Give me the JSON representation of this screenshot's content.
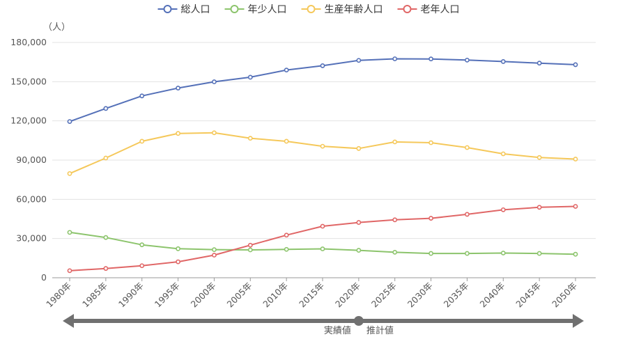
{
  "chart_data": {
    "type": "line",
    "title": "",
    "xlabel": "",
    "ylabel": "",
    "unit_label": "（人）",
    "categories": [
      "1980年",
      "1985年",
      "1990年",
      "1995年",
      "2000年",
      "2005年",
      "2010年",
      "2015年",
      "2020年",
      "2025年",
      "2030年",
      "2035年",
      "2040年",
      "2045年",
      "2050年"
    ],
    "ylim": [
      0,
      180000
    ],
    "yticks": [
      0,
      30000,
      60000,
      90000,
      120000,
      150000,
      180000
    ],
    "ytick_labels": [
      "0",
      "30,000",
      "60,000",
      "90,000",
      "120,000",
      "150,000",
      "180,000"
    ],
    "grid": true,
    "legend_position": "top-center",
    "series": [
      {
        "name": "総人口",
        "color": "#5470b8",
        "values": [
          119500,
          129500,
          139100,
          145100,
          149900,
          153400,
          158900,
          162200,
          166300,
          167500,
          167400,
          166500,
          165400,
          164200,
          163000
        ]
      },
      {
        "name": "年少人口",
        "color": "#8cc46c",
        "values": [
          34700,
          30800,
          25200,
          22200,
          21500,
          21300,
          21700,
          22100,
          21000,
          19500,
          18600,
          18600,
          18900,
          18600,
          18000
        ]
      },
      {
        "name": "生産年齢人口",
        "color": "#f5c85a",
        "values": [
          79700,
          91600,
          104400,
          110400,
          110900,
          106700,
          104400,
          100600,
          98900,
          103900,
          103300,
          99600,
          94800,
          92000,
          90800
        ]
      },
      {
        "name": "老年人口",
        "color": "#e06666",
        "values": [
          5400,
          7100,
          9200,
          12200,
          17300,
          24900,
          32600,
          39400,
          42300,
          44300,
          45500,
          48500,
          52000,
          53900,
          54600
        ]
      }
    ],
    "annotations": {
      "actual_label": "実績値",
      "projected_label": "推計値",
      "divider_category": "2020年",
      "arrow_color": "#707070"
    }
  }
}
